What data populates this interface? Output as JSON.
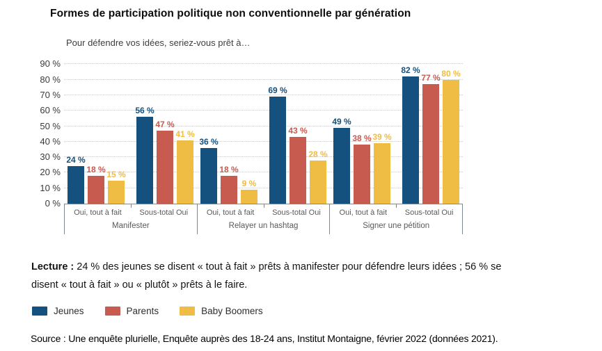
{
  "title": "Formes de participation politique non conventionnelle par génération",
  "subtitle": "Pour défendre vos idées, seriez-vous prêt à…",
  "chart_data": {
    "type": "bar",
    "title": "Formes de participation politique non conventionnelle par génération",
    "subtitle": "Pour défendre vos idées, seriez-vous prêt à…",
    "ylim": [
      0,
      90
    ],
    "ytick_step": 10,
    "ytick_suffix": " %",
    "value_label_suffix": " %",
    "grid": "dotted-horizontal",
    "legend_position": "bottom-left",
    "series_names": [
      "Jeunes",
      "Parents",
      "Baby Boomers"
    ],
    "series_colors": [
      "#15517E",
      "#C75B50",
      "#EFBC44"
    ],
    "groups": [
      {
        "label": "Manifester",
        "subgroups": [
          {
            "label": "Oui, tout à fait",
            "values": [
              24,
              18,
              15
            ]
          },
          {
            "label": "Sous-total Oui",
            "values": [
              56,
              47,
              41
            ]
          }
        ]
      },
      {
        "label": "Relayer un hashtag",
        "subgroups": [
          {
            "label": "Oui, tout à fait",
            "values": [
              36,
              18,
              9
            ]
          },
          {
            "label": "Sous-total Oui",
            "values": [
              69,
              43,
              28
            ]
          }
        ]
      },
      {
        "label": "Signer une pétition",
        "subgroups": [
          {
            "label": "Oui, tout à fait",
            "values": [
              49,
              38,
              39
            ]
          },
          {
            "label": "Sous-total Oui",
            "values": [
              82,
              77,
              80
            ]
          }
        ]
      }
    ]
  },
  "legend": {
    "items": [
      {
        "label": "Jeunes",
        "color": "#15517E"
      },
      {
        "label": "Parents",
        "color": "#C75B50"
      },
      {
        "label": "Baby Boomers",
        "color": "#EFBC44"
      }
    ]
  },
  "lecture": {
    "label": "Lecture :",
    "text": " 24 % des jeunes se disent « tout à fait » prêts à manifester pour défendre leurs idées ; 56 % se disent « tout à fait » ou « plutôt » prêts à le faire."
  },
  "source": "Source : Une enquête plurielle, Enquête auprès des 18-24 ans, Institut Montaigne, février 2022 (données 2021)."
}
